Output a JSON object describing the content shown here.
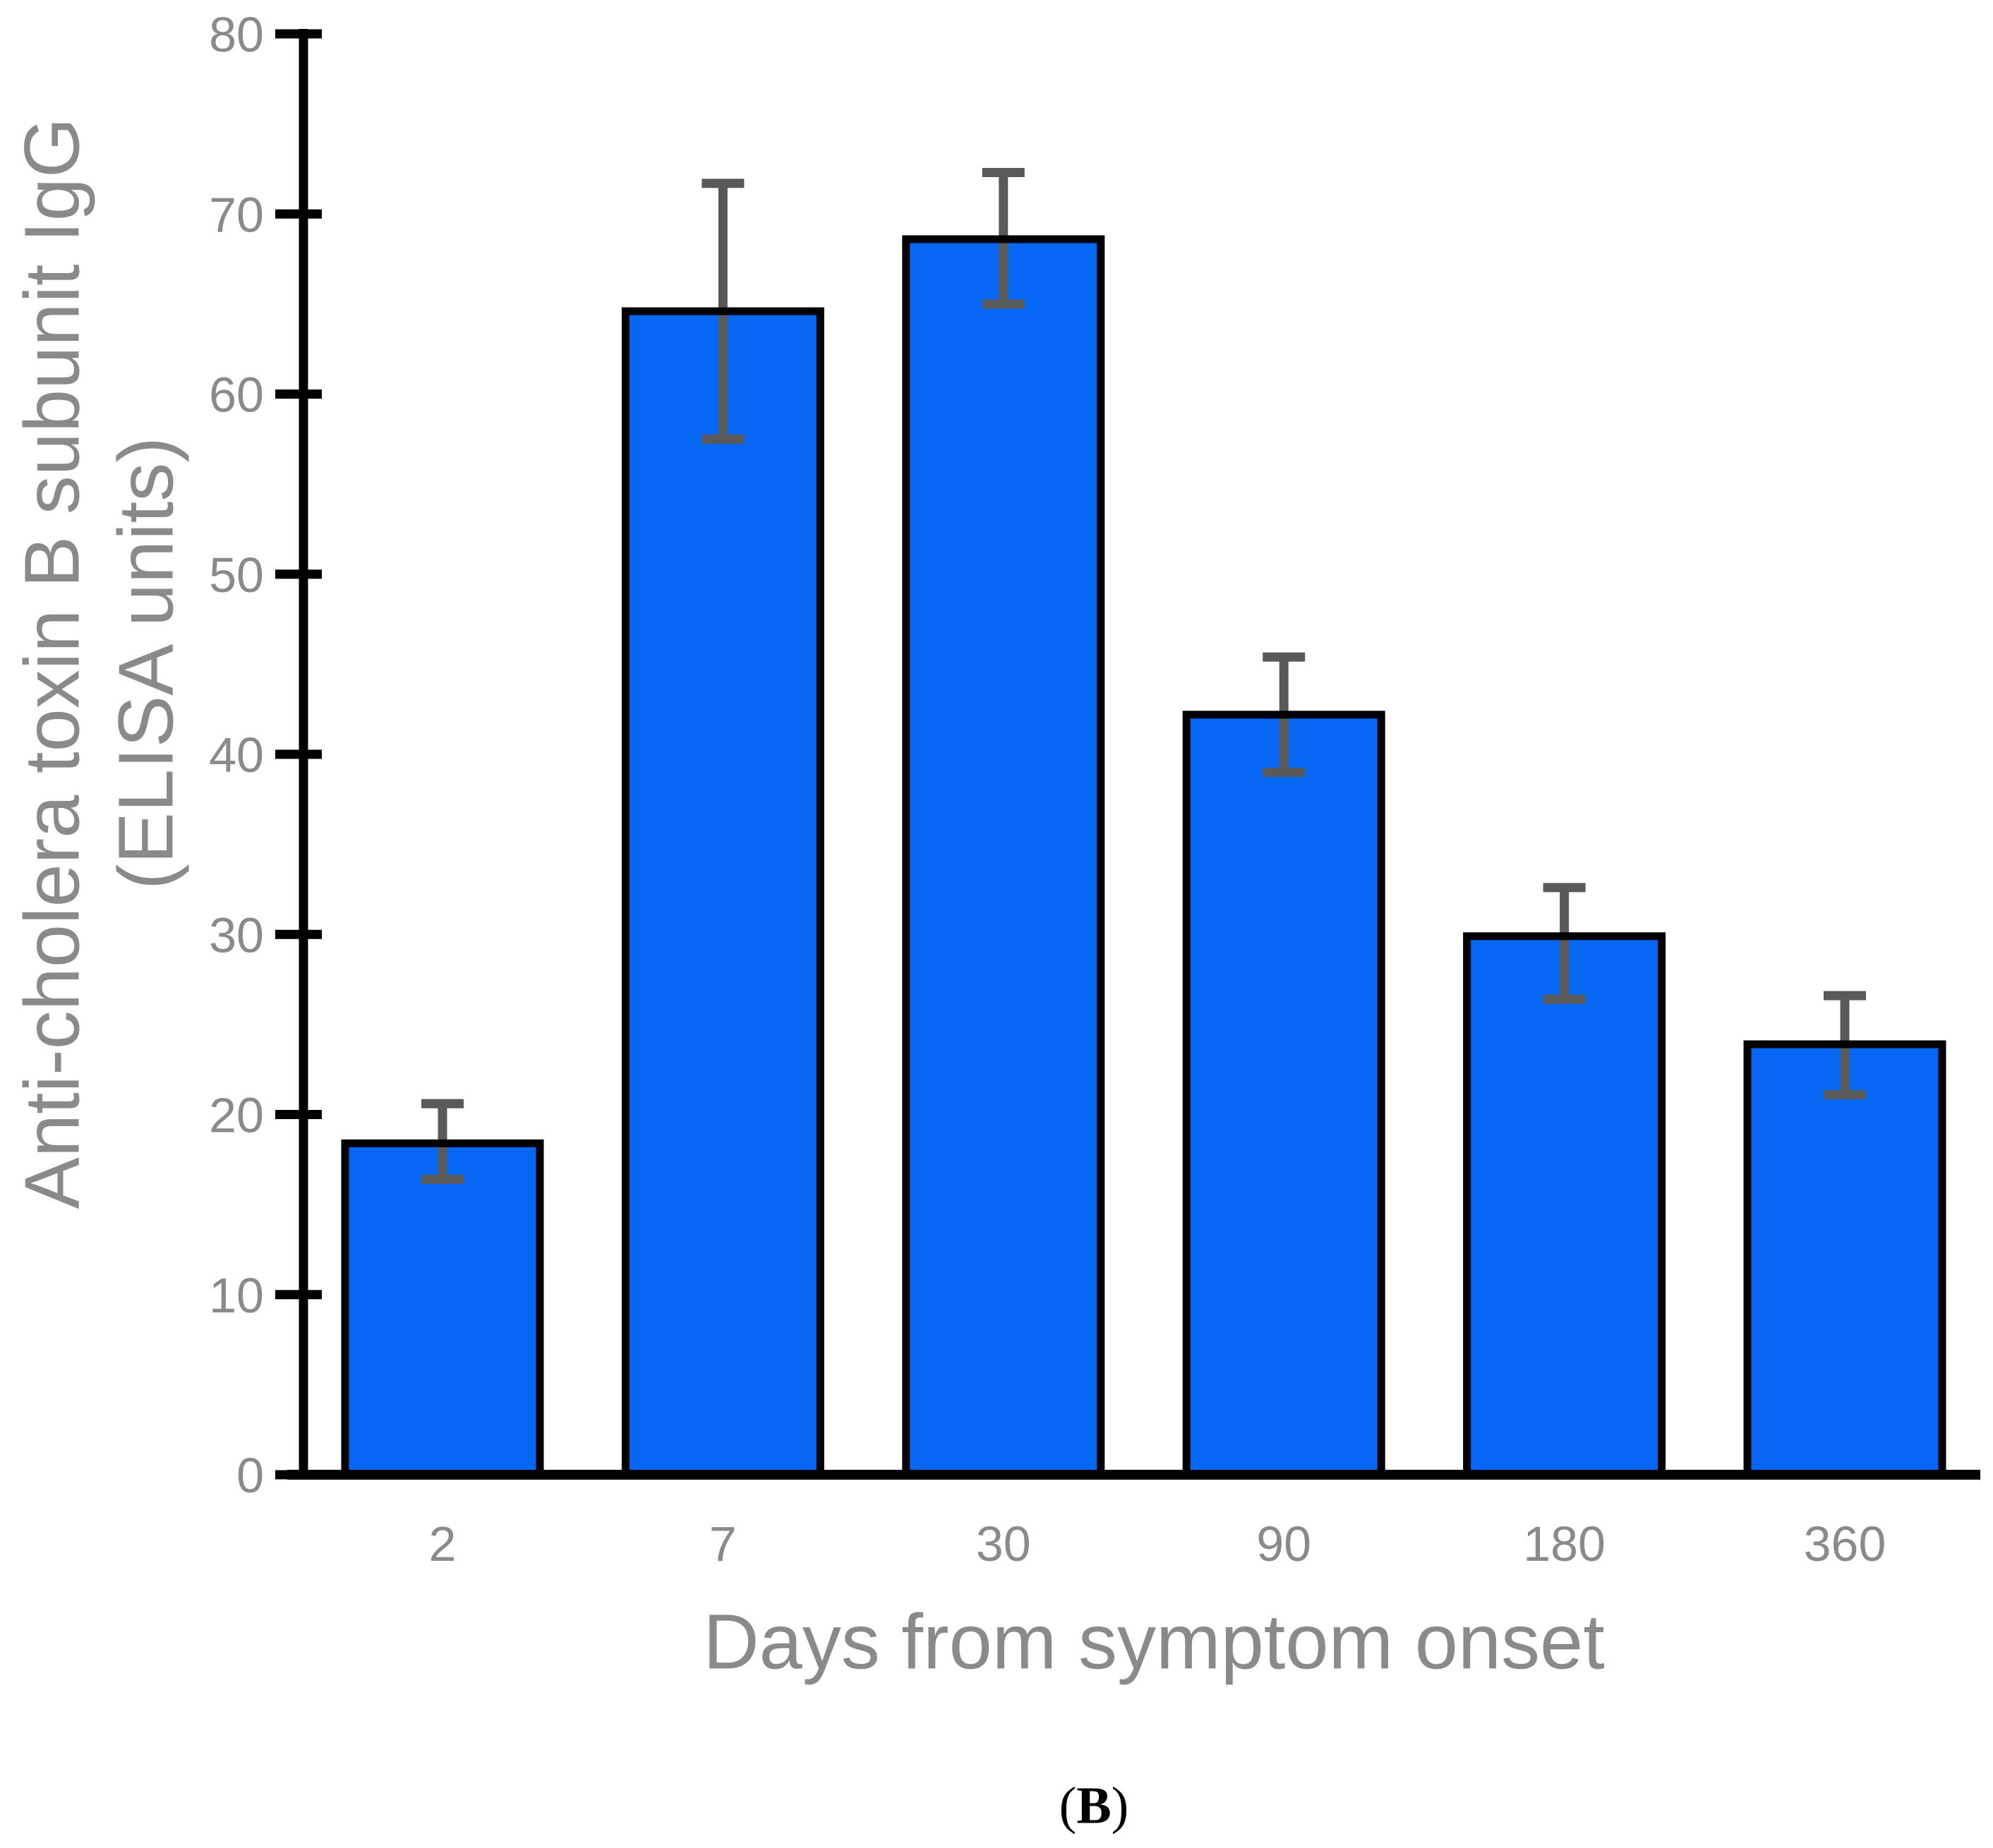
{
  "figure": {
    "caption_open": "(",
    "caption_letter": "B",
    "caption_close": ")",
    "background": "#ffffff"
  },
  "chart_data": {
    "type": "bar",
    "title": "",
    "xlabel": "Days from symptom onset",
    "ylabel_line1": "Anti-cholera toxin B subunit IgG",
    "ylabel_line2": "(ELISA units)",
    "categories": [
      "2",
      "7",
      "30",
      "90",
      "180",
      "360"
    ],
    "values": [
      18.4,
      64.6,
      68.6,
      42.2,
      29.9,
      23.9
    ],
    "error_low": [
      16.4,
      57.5,
      65.0,
      39.0,
      26.4,
      21.1
    ],
    "error_high": [
      20.6,
      71.7,
      72.3,
      45.4,
      32.6,
      26.6
    ],
    "ylim": [
      0,
      80
    ],
    "ytick_step": 10,
    "ytick_labels": [
      "0",
      "10",
      "20",
      "30",
      "40",
      "50",
      "60",
      "70",
      "80"
    ],
    "grid": false,
    "legend": null,
    "colors": {
      "bar_fill": "#0567F4",
      "bar_border": "#000000",
      "error_bar": "#595959",
      "axis": "#000000",
      "label_gray": "#8a8a8a"
    }
  }
}
